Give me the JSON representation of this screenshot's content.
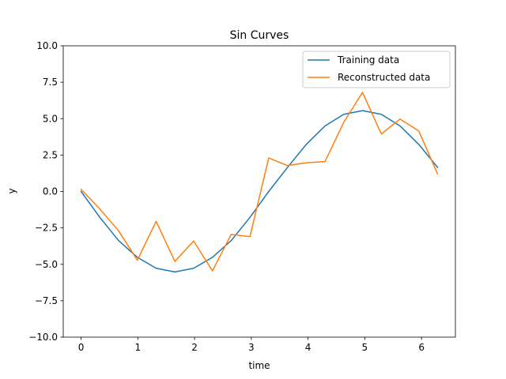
{
  "chart_data": {
    "type": "line",
    "title": "Sin Curves",
    "xlabel": "time",
    "ylabel": "y",
    "xlim": [
      -0.3142,
      6.5973
    ],
    "ylim": [
      -10.0,
      10.0
    ],
    "x_ticks": [
      0,
      1,
      2,
      3,
      4,
      5,
      6
    ],
    "y_ticks": [
      -10.0,
      -7.5,
      -5.0,
      -2.5,
      0.0,
      2.5,
      5.0,
      7.5,
      10.0
    ],
    "x_tick_labels": [
      "0",
      "1",
      "2",
      "3",
      "4",
      "5",
      "6"
    ],
    "y_tick_labels": [
      "−10.0",
      "−7.5",
      "−5.0",
      "−2.5",
      "0.0",
      "2.5",
      "5.0",
      "7.5",
      "10.0"
    ],
    "legend_position": "top-right",
    "grid": false,
    "x": [
      0.0,
      0.3307,
      0.6614,
      0.9921,
      1.3228,
      1.6535,
      1.9842,
      2.3149,
      2.6456,
      2.9762,
      3.3069,
      3.6376,
      3.9683,
      4.299,
      4.6297,
      4.9604,
      5.2911,
      5.6218,
      5.9525,
      6.2832
    ],
    "series": [
      {
        "name": "Training data",
        "color": "#1f77b4",
        "values": [
          0.0,
          -1.78,
          -3.37,
          -4.52,
          -5.27,
          -5.52,
          -5.27,
          -4.52,
          -3.37,
          -1.78,
          0.0,
          1.65,
          3.23,
          4.5,
          5.3,
          5.55,
          5.3,
          4.5,
          3.23,
          1.65
        ]
      },
      {
        "name": "Reconstructed data",
        "color": "#ff7f0e",
        "values": [
          0.15,
          -1.2,
          -2.7,
          -4.72,
          -2.05,
          -4.8,
          -3.4,
          -5.45,
          -2.95,
          -3.1,
          2.3,
          1.78,
          1.97,
          2.05,
          4.75,
          6.8,
          3.95,
          4.97,
          4.15,
          1.2
        ]
      }
    ]
  }
}
